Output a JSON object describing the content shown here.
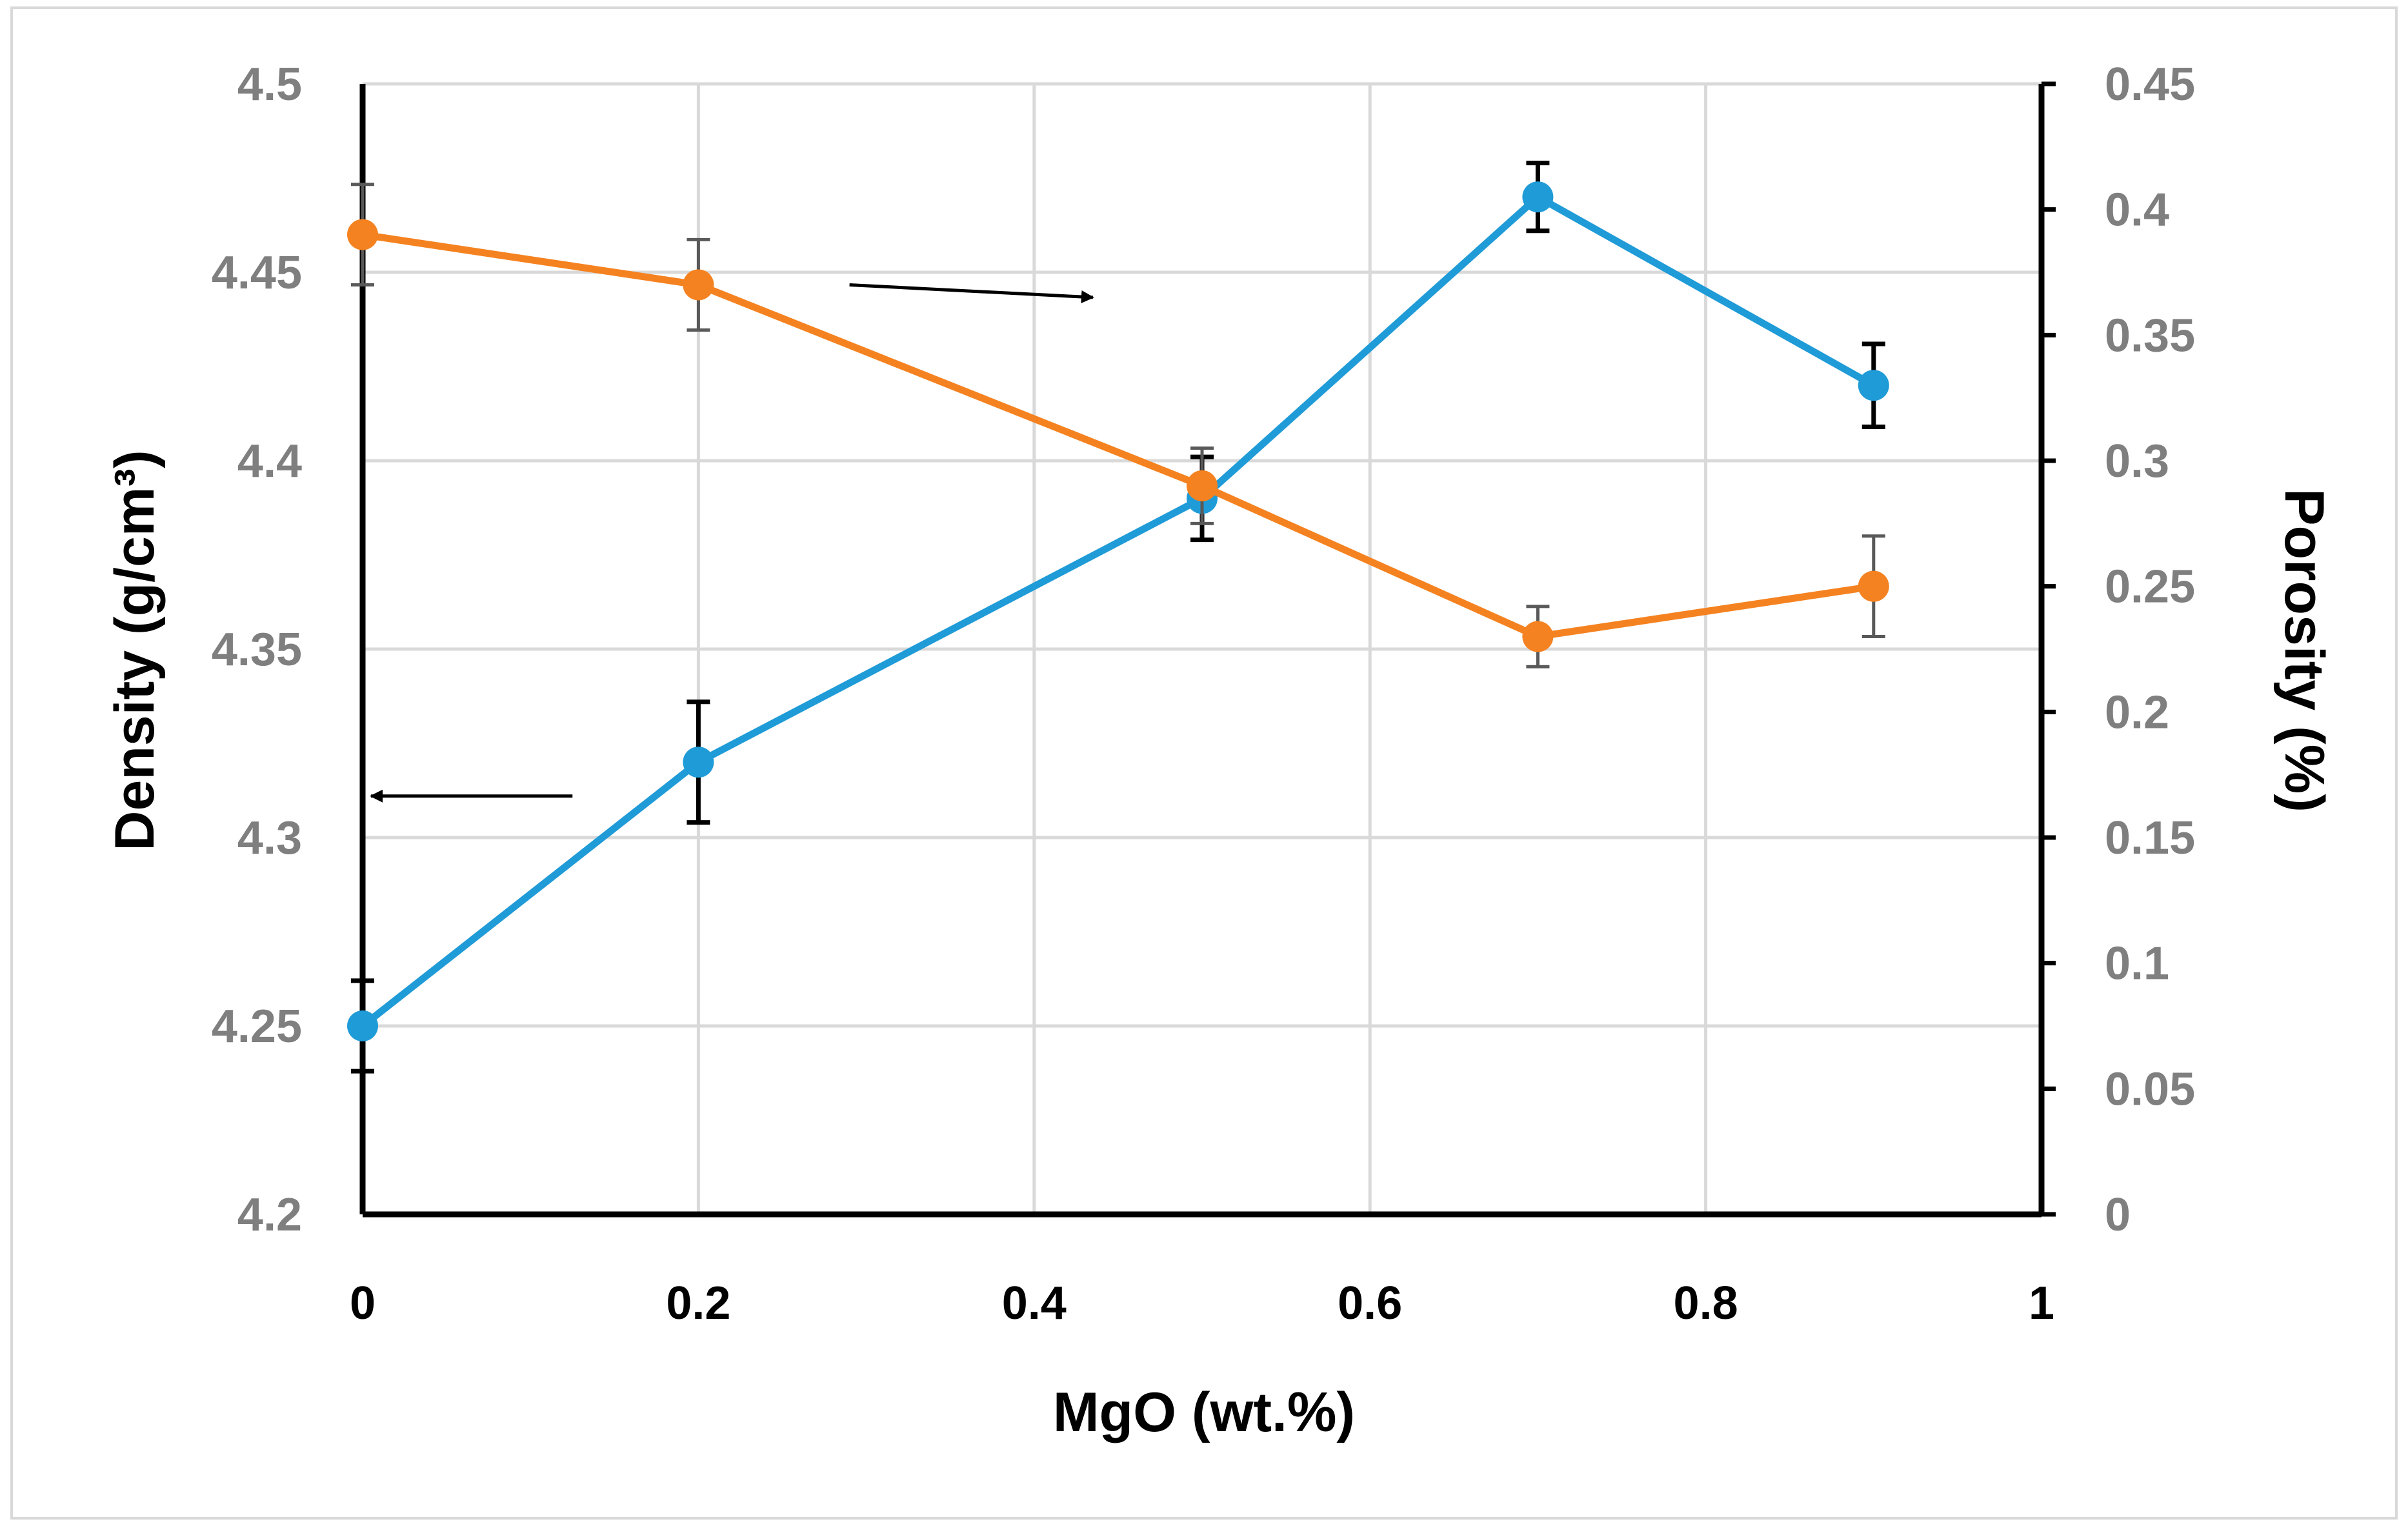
{
  "colors": {
    "density": "#1f9bd7",
    "porosity": "#f58220",
    "grid": "#d9d9d9",
    "axis": "#000000",
    "tick_text": "#7f7f7f",
    "density_errorbar": "#000000",
    "porosity_errorbar": "#595959",
    "frame": "#d9d9d9"
  },
  "chart_data": {
    "type": "line",
    "x": [
      0,
      0.2,
      0.5,
      0.7,
      0.9
    ],
    "xlabel": "MgO (wt.%)",
    "ylabel": "Density (g/cm³)",
    "y2label": "Porosity (%)",
    "xlim": [
      0,
      1
    ],
    "ylim": [
      4.2,
      4.5
    ],
    "y2lim": [
      0,
      0.45
    ],
    "grid": true,
    "x_ticks": [
      0,
      0.2,
      0.4,
      0.6,
      0.8,
      1
    ],
    "x_tick_labels": [
      "0",
      "0.2",
      "0.4",
      "0.6",
      "0.8",
      "1"
    ],
    "y_ticks": [
      4.2,
      4.25,
      4.3,
      4.35,
      4.4,
      4.45,
      4.5
    ],
    "y_tick_labels": [
      "4.2",
      "4.25",
      "4.3",
      "4.35",
      "4.4",
      "4.45",
      "4.5"
    ],
    "y2_ticks": [
      0,
      0.05,
      0.1,
      0.15,
      0.2,
      0.25,
      0.3,
      0.35,
      0.4,
      0.45
    ],
    "y2_tick_labels": [
      "0",
      "0.05",
      "0.1",
      "0.15",
      "0.2",
      "0.25",
      "0.3",
      "0.35",
      "0.4",
      "0.45"
    ],
    "series": [
      {
        "name": "Density",
        "axis": "left",
        "values": [
          4.25,
          4.32,
          4.39,
          4.47,
          4.42
        ],
        "errors": [
          0.012,
          0.016,
          0.011,
          0.009,
          0.011
        ]
      },
      {
        "name": "Porosity",
        "axis": "right",
        "values": [
          0.39,
          0.37,
          0.29,
          0.23,
          0.25
        ],
        "errors": [
          0.02,
          0.018,
          0.015,
          0.012,
          0.02
        ]
      }
    ],
    "annotations": [
      {
        "type": "arrow",
        "points_to": "right axis",
        "series": "Porosity",
        "from": [
          0.29,
          0.37
        ],
        "to": [
          0.435,
          0.365
        ]
      },
      {
        "type": "arrow",
        "points_to": "left axis",
        "series": "Density",
        "from": [
          0.125,
          4.311
        ],
        "to": [
          0.005,
          4.311
        ]
      }
    ]
  }
}
